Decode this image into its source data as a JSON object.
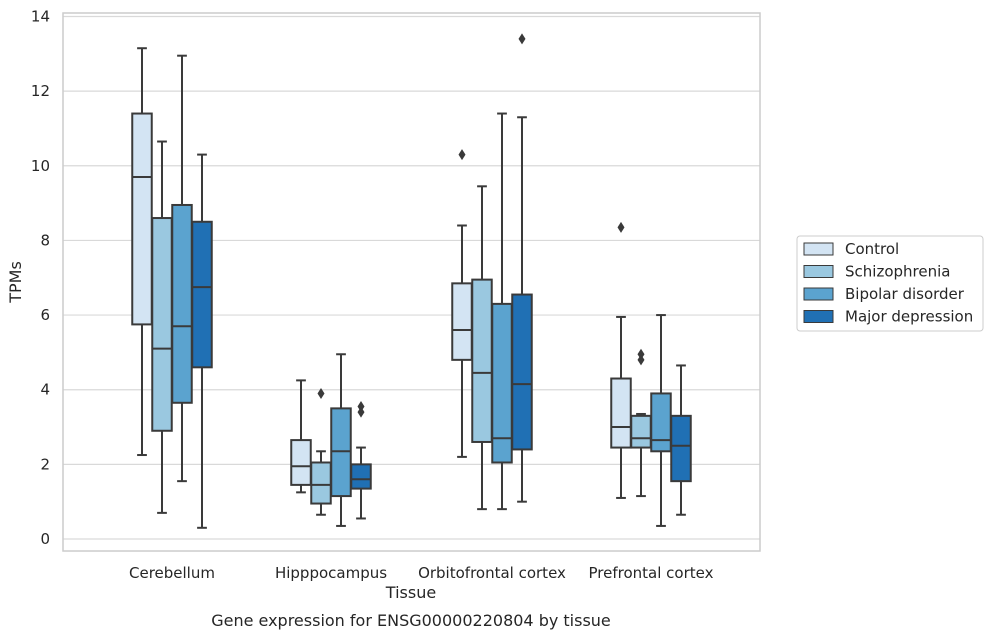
{
  "chart_data": {
    "type": "box",
    "title": "",
    "xlabel": "Tissue",
    "ylabel": "TPMs",
    "caption": "Gene expression for ENSG00000220804 by tissue",
    "ylim": [
      -0.4,
      14.1
    ],
    "yticks": [
      0,
      2,
      4,
      6,
      8,
      10,
      12,
      14
    ],
    "grid": "horizontal",
    "legend_position": "right",
    "categories": [
      "Cerebellum",
      "Hipppocampus",
      "Orbitofrontal cortex",
      "Prefrontal cortex"
    ],
    "series": [
      {
        "name": "Control",
        "color": "#d3e4f3",
        "boxes": [
          {
            "whisker_low": 2.25,
            "q1": 5.75,
            "median": 9.7,
            "q3": 11.4,
            "whisker_high": 13.15,
            "outliers": []
          },
          {
            "whisker_low": 1.25,
            "q1": 1.45,
            "median": 1.95,
            "q3": 2.65,
            "whisker_high": 4.25,
            "outliers": []
          },
          {
            "whisker_low": 2.2,
            "q1": 4.8,
            "median": 5.6,
            "q3": 6.85,
            "whisker_high": 8.4,
            "outliers": [
              10.3
            ]
          },
          {
            "whisker_low": 1.1,
            "q1": 2.45,
            "median": 3.0,
            "q3": 4.3,
            "whisker_high": 5.95,
            "outliers": [
              8.35
            ]
          }
        ]
      },
      {
        "name": "Schizophrenia",
        "color": "#9ac8e0",
        "boxes": [
          {
            "whisker_low": 0.7,
            "q1": 2.9,
            "median": 5.1,
            "q3": 8.6,
            "whisker_high": 10.65,
            "outliers": []
          },
          {
            "whisker_low": 0.65,
            "q1": 0.95,
            "median": 1.45,
            "q3": 2.05,
            "whisker_high": 2.35,
            "outliers": [
              3.9
            ]
          },
          {
            "whisker_low": 0.8,
            "q1": 2.6,
            "median": 4.45,
            "q3": 6.95,
            "whisker_high": 9.45,
            "outliers": []
          },
          {
            "whisker_low": 1.15,
            "q1": 2.45,
            "median": 2.7,
            "q3": 3.3,
            "whisker_high": 3.35,
            "outliers": [
              4.8,
              4.95
            ]
          }
        ]
      },
      {
        "name": "Bipolar disorder",
        "color": "#5ba3cf",
        "boxes": [
          {
            "whisker_low": 1.55,
            "q1": 3.65,
            "median": 5.7,
            "q3": 8.95,
            "whisker_high": 12.95,
            "outliers": []
          },
          {
            "whisker_low": 0.35,
            "q1": 1.15,
            "median": 2.35,
            "q3": 3.5,
            "whisker_high": 4.95,
            "outliers": []
          },
          {
            "whisker_low": 0.8,
            "q1": 2.05,
            "median": 2.7,
            "q3": 6.3,
            "whisker_high": 11.4,
            "outliers": []
          },
          {
            "whisker_low": 0.35,
            "q1": 2.35,
            "median": 2.65,
            "q3": 3.9,
            "whisker_high": 6.0,
            "outliers": []
          }
        ]
      },
      {
        "name": "Major depression",
        "color": "#2070b4",
        "boxes": [
          {
            "whisker_low": 0.3,
            "q1": 4.6,
            "median": 6.75,
            "q3": 8.5,
            "whisker_high": 10.3,
            "outliers": []
          },
          {
            "whisker_low": 0.55,
            "q1": 1.35,
            "median": 1.6,
            "q3": 2.0,
            "whisker_high": 2.45,
            "outliers": [
              3.4,
              3.55
            ]
          },
          {
            "whisker_low": 1.0,
            "q1": 2.4,
            "median": 4.15,
            "q3": 6.55,
            "whisker_high": 11.3,
            "outliers": [
              13.4
            ]
          },
          {
            "whisker_low": 0.65,
            "q1": 1.55,
            "median": 2.5,
            "q3": 3.3,
            "whisker_high": 4.65,
            "outliers": []
          }
        ]
      }
    ]
  }
}
